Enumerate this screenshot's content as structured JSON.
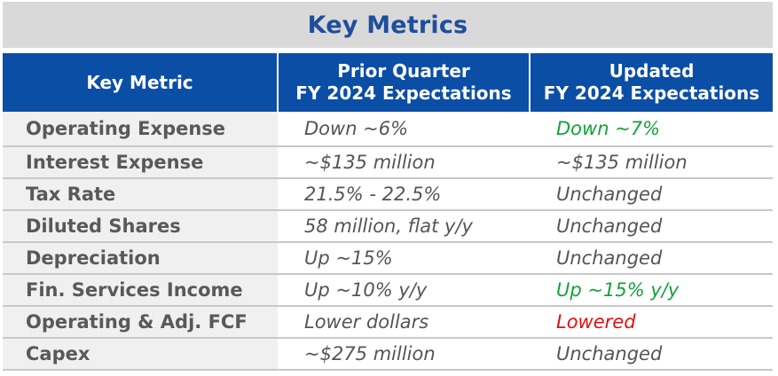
{
  "title": "Key Metrics",
  "header": {
    "col1": "Key Metric",
    "col2_line1": "Prior Quarter",
    "col2_line2": "FY 2024 Expectations",
    "col3_line1": "Updated",
    "col3_line2": "FY 2024 Expectations"
  },
  "rows": [
    {
      "metric": "Operating Expense",
      "prior": "Down ~6%",
      "updated": "Down ~7%",
      "updated_color": "green"
    },
    {
      "metric": "Interest Expense",
      "prior": "~$135 million",
      "updated": "~$135 million",
      "updated_color": "default"
    },
    {
      "metric": "Tax Rate",
      "prior": "21.5% - 22.5%",
      "updated": "Unchanged",
      "updated_color": "default"
    },
    {
      "metric": "Diluted Shares",
      "prior": "58 million, flat y/y",
      "updated": "Unchanged",
      "updated_color": "default"
    },
    {
      "metric": "Depreciation",
      "prior": "Up ~15%",
      "updated": "Unchanged",
      "updated_color": "default"
    },
    {
      "metric": "Fin. Services Income",
      "prior": "Up ~10% y/y",
      "updated": "Up ~15% y/y",
      "updated_color": "green"
    },
    {
      "metric": "Operating & Adj. FCF",
      "prior": "Lower dollars",
      "updated": "Lowered",
      "updated_color": "red"
    },
    {
      "metric": "Capex",
      "prior": "~$275 million",
      "updated": "Unchanged",
      "updated_color": "default"
    }
  ],
  "colors": {
    "title": "#1f4e9d",
    "header_bg": "#0b4ea6",
    "positive": "#12a33a",
    "negative": "#e01010"
  }
}
